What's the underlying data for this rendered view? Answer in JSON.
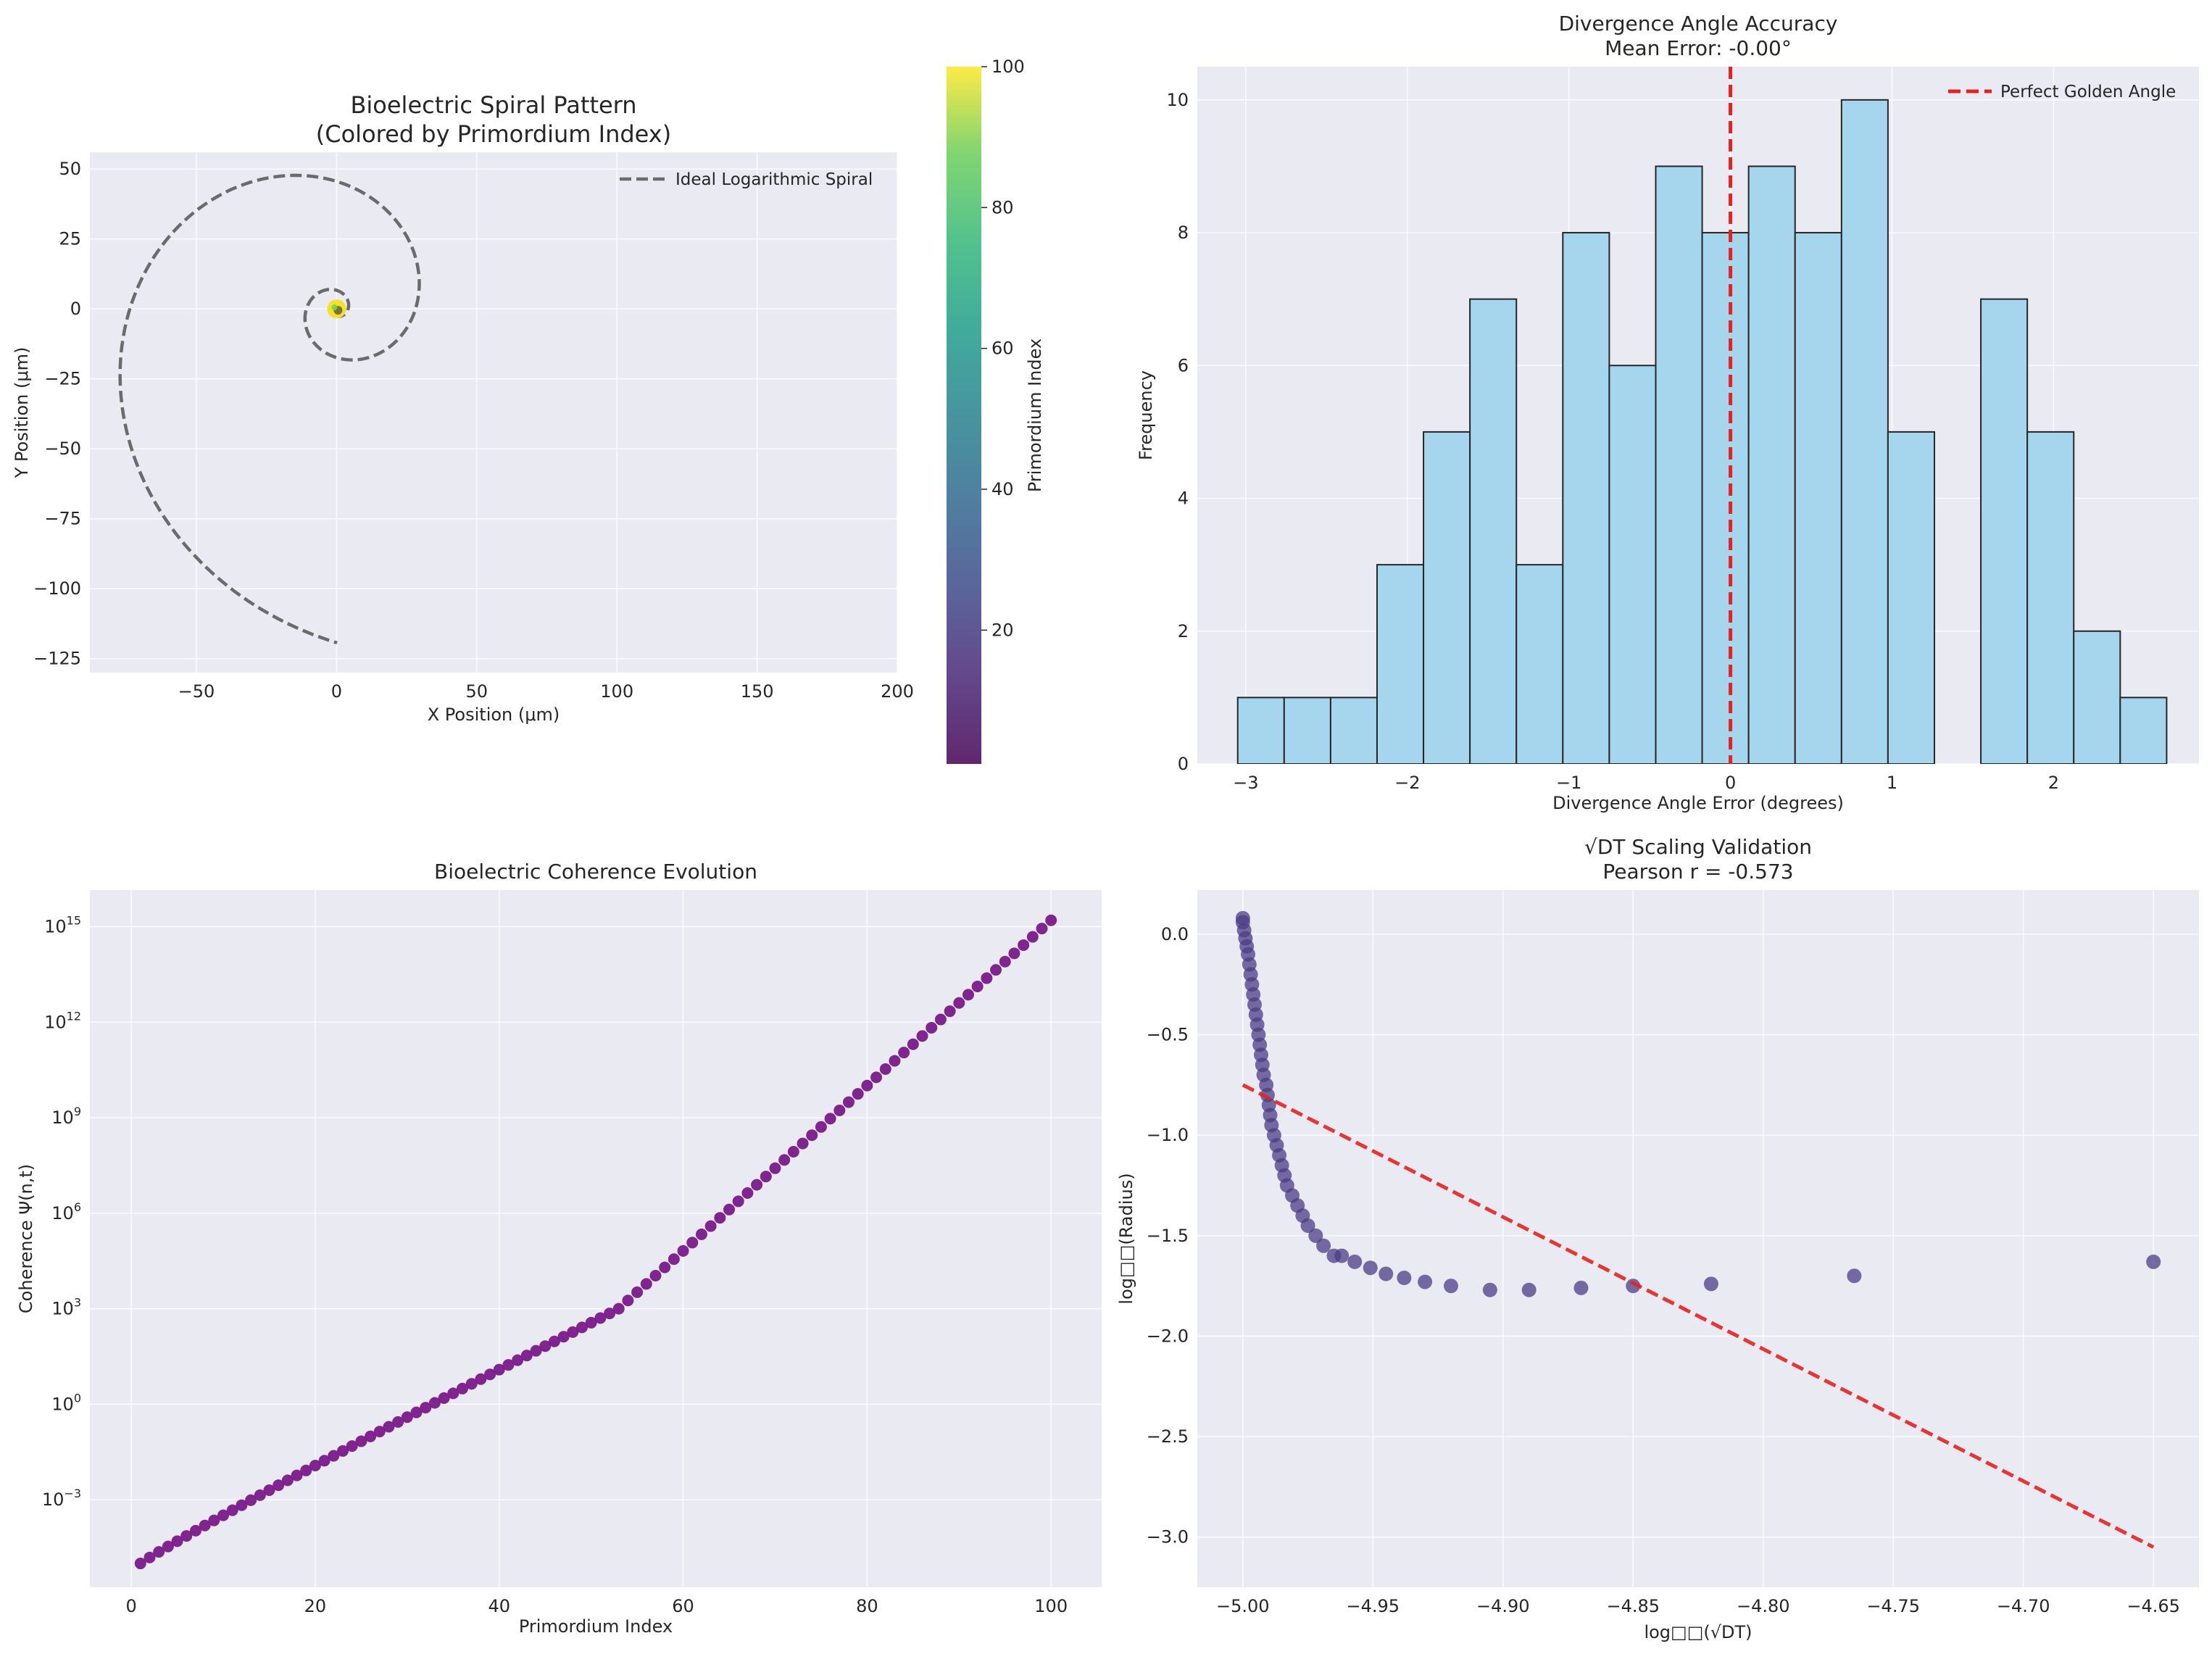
{
  "colors": {
    "panel_bg": "#eaeaf2",
    "grid": "#ffffff",
    "spiral_line": "#6b6b6b",
    "hist_fill": "#a6d6ee",
    "hist_edge": "#262626",
    "red": "#e8211f",
    "coherence": "#7a1a8a",
    "scatter": "#4b3c85"
  },
  "chart_data": [
    {
      "type": "line",
      "title": "Bioelectric Spiral Pattern",
      "subtitle": "(Colored by Primordium Index)",
      "xlabel": "X Position (μm)",
      "ylabel": "Y Position (μm)",
      "xlim": [
        -88,
        200
      ],
      "ylim": [
        -130,
        56
      ],
      "xticks": [
        -50,
        0,
        50,
        100,
        150,
        200
      ],
      "yticks": [
        -125,
        -100,
        -75,
        -50,
        -25,
        0,
        25,
        50
      ],
      "xtick_labels": [
        "−50",
        "0",
        "50",
        "100",
        "150",
        "200"
      ],
      "ytick_labels": [
        "−125",
        "−100",
        "−75",
        "−50",
        "−25",
        "0",
        "25",
        "50"
      ],
      "legend": "Ideal Logarithmic Spiral",
      "legend_position": "top-right",
      "spiral": {
        "a": 0.6,
        "b": 0.3063,
        "theta_max": 17.28
      },
      "colorbar": {
        "label": "Primordium Index",
        "range": [
          1,
          100
        ],
        "ticks": [
          20,
          40,
          60,
          80,
          100
        ],
        "colormap": "viridis"
      },
      "primordia_cluster": {
        "x": 0,
        "y": 0,
        "count": 100
      }
    },
    {
      "type": "bar",
      "title": "Divergence Angle Accuracy",
      "subtitle": "Mean Error: -0.00°",
      "xlabel": "Divergence Angle Error (degrees)",
      "ylabel": "Frequency",
      "xlim": [
        -3.3,
        2.9
      ],
      "ylim": [
        0,
        10.5
      ],
      "xticks": [
        -3,
        -2,
        -1,
        0,
        1,
        2
      ],
      "xtick_labels": [
        "−3",
        "−2",
        "−1",
        "0",
        "1",
        "2"
      ],
      "yticks": [
        0,
        2,
        4,
        6,
        8,
        10
      ],
      "bin_start": -3.05,
      "bin_width": 0.2875,
      "values": [
        1,
        1,
        1,
        3,
        5,
        7,
        3,
        8,
        6,
        9,
        8,
        9,
        8,
        10,
        5,
        0,
        7,
        5,
        2,
        1
      ],
      "reference_line": {
        "x": 0,
        "label": "Perfect Golden Angle"
      },
      "legend_position": "top-right"
    },
    {
      "type": "scatter",
      "title": "Bioelectric Coherence Evolution",
      "xlabel": "Primordium Index",
      "ylabel": "Coherence Ψ(n,t)",
      "xlim": [
        -4.5,
        105.5
      ],
      "yscale": "log",
      "ylim_log10": [
        -5.75,
        16.15
      ],
      "xticks": [
        0,
        20,
        40,
        60,
        80,
        100
      ],
      "yticks_exp": [
        -3,
        0,
        3,
        6,
        9,
        12,
        15
      ],
      "ytick_base": "10",
      "n": [
        1,
        100
      ],
      "log10_psi": [
        -5.0,
        15.2
      ],
      "log10_psi_mid": [
        3.0,
        53
      ]
    },
    {
      "type": "scatter",
      "title": "√DT Scaling Validation",
      "subtitle": "Pearson r = -0.573",
      "xlabel": "log□□(√DT)",
      "ylabel": "log□□(Radius)",
      "xlim": [
        -5.0175,
        -4.6325
      ],
      "ylim": [
        -3.25,
        0.22
      ],
      "xticks": [
        -5.0,
        -4.95,
        -4.9,
        -4.85,
        -4.8,
        -4.75,
        -4.7,
        -4.65
      ],
      "xtick_labels": [
        "−5.00",
        "−4.95",
        "−4.90",
        "−4.85",
        "−4.80",
        "−4.75",
        "−4.70",
        "−4.65"
      ],
      "yticks": [
        -3.0,
        -2.5,
        -2.0,
        -1.5,
        -1.0,
        -0.5,
        0.0
      ],
      "ytick_labels": [
        "−3.0",
        "−2.5",
        "−2.0",
        "−1.5",
        "−1.0",
        "−0.5",
        "0.0"
      ],
      "points": [
        [
          -5.0,
          0.08
        ],
        [
          -5.0,
          0.06
        ],
        [
          -4.9995,
          0.02
        ],
        [
          -4.999,
          -0.02
        ],
        [
          -4.9985,
          -0.06
        ],
        [
          -4.998,
          -0.1
        ],
        [
          -4.9975,
          -0.15
        ],
        [
          -4.997,
          -0.2
        ],
        [
          -4.9965,
          -0.25
        ],
        [
          -4.996,
          -0.3
        ],
        [
          -4.9955,
          -0.35
        ],
        [
          -4.995,
          -0.4
        ],
        [
          -4.9945,
          -0.45
        ],
        [
          -4.994,
          -0.5
        ],
        [
          -4.9935,
          -0.55
        ],
        [
          -4.993,
          -0.6
        ],
        [
          -4.9925,
          -0.65
        ],
        [
          -4.992,
          -0.7
        ],
        [
          -4.991,
          -0.75
        ],
        [
          -4.9905,
          -0.8
        ],
        [
          -4.99,
          -0.85
        ],
        [
          -4.9895,
          -0.9
        ],
        [
          -4.989,
          -0.95
        ],
        [
          -4.988,
          -1.0
        ],
        [
          -4.987,
          -1.05
        ],
        [
          -4.986,
          -1.1
        ],
        [
          -4.985,
          -1.15
        ],
        [
          -4.984,
          -1.2
        ],
        [
          -4.983,
          -1.25
        ],
        [
          -4.981,
          -1.3
        ],
        [
          -4.979,
          -1.35
        ],
        [
          -4.977,
          -1.4
        ],
        [
          -4.975,
          -1.45
        ],
        [
          -4.972,
          -1.5
        ],
        [
          -4.969,
          -1.55
        ],
        [
          -4.965,
          -1.6
        ],
        [
          -4.962,
          -1.6
        ],
        [
          -4.957,
          -1.63
        ],
        [
          -4.951,
          -1.66
        ],
        [
          -4.945,
          -1.69
        ],
        [
          -4.938,
          -1.71
        ],
        [
          -4.93,
          -1.73
        ],
        [
          -4.92,
          -1.75
        ],
        [
          -4.905,
          -1.77
        ],
        [
          -4.89,
          -1.77
        ],
        [
          -4.87,
          -1.76
        ],
        [
          -4.85,
          -1.75
        ],
        [
          -4.82,
          -1.74
        ],
        [
          -4.765,
          -1.7
        ],
        [
          -4.65,
          -1.63
        ]
      ],
      "fit_line": {
        "x": [
          -5.0,
          -4.65
        ],
        "y": [
          -0.75,
          -3.05
        ]
      }
    }
  ]
}
